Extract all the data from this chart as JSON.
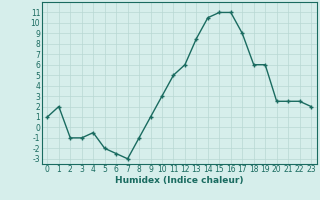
{
  "x": [
    0,
    1,
    2,
    3,
    4,
    5,
    6,
    7,
    8,
    9,
    10,
    11,
    12,
    13,
    14,
    15,
    16,
    17,
    18,
    19,
    20,
    21,
    22,
    23
  ],
  "y": [
    1,
    2,
    -1,
    -1,
    -0.5,
    -2,
    -2.5,
    -3,
    -1,
    1,
    3,
    5,
    6,
    8.5,
    10.5,
    11,
    11,
    9,
    6,
    6,
    2.5,
    2.5,
    2.5,
    2
  ],
  "line_color": "#1a6b60",
  "marker": "+",
  "bg_color": "#d6eeeb",
  "grid_color": "#b8d8d4",
  "xlabel": "Humidex (Indice chaleur)",
  "xlim": [
    -0.5,
    23.5
  ],
  "ylim": [
    -3.5,
    12.0
  ],
  "xticks": [
    0,
    1,
    2,
    3,
    4,
    5,
    6,
    7,
    8,
    9,
    10,
    11,
    12,
    13,
    14,
    15,
    16,
    17,
    18,
    19,
    20,
    21,
    22,
    23
  ],
  "yticks": [
    -3,
    -2,
    -1,
    0,
    1,
    2,
    3,
    4,
    5,
    6,
    7,
    8,
    9,
    10,
    11
  ],
  "tick_fontsize": 5.5,
  "xlabel_fontsize": 6.5,
  "line_width": 1.0,
  "marker_size": 3.5,
  "marker_ew": 1.0
}
